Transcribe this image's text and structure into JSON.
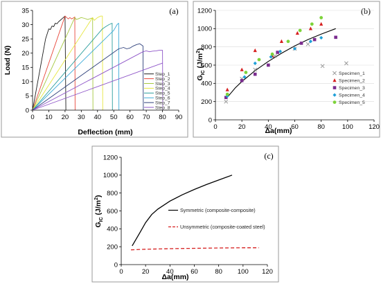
{
  "chart_data": [
    {
      "type": "line",
      "panel_label": "(a)",
      "xlabel": "Deflection (mm)",
      "ylabel": "Load (N)",
      "xlim": [
        0,
        90
      ],
      "ylim": [
        0,
        35
      ],
      "xticks": [
        "0",
        "10",
        "20",
        "30",
        "40",
        "50",
        "60",
        "70",
        "80",
        "90"
      ],
      "yticks": [
        "0",
        "5",
        "10",
        "15",
        "20",
        "25",
        "30",
        "35"
      ],
      "grid": false,
      "legend_position": "bottom-right",
      "series": [
        {
          "name": "Step_1",
          "color": "#1a1a1a",
          "points": [
            [
              0,
              0
            ],
            [
              8,
              25
            ],
            [
              10,
              28.5
            ],
            [
              11,
              28.3
            ],
            [
              12,
              29.5
            ],
            [
              13,
              29.3
            ],
            [
              14,
              30.5
            ],
            [
              15,
              30.3
            ],
            [
              16,
              31
            ],
            [
              17,
              31.5
            ],
            [
              18,
              32
            ],
            [
              19,
              32.5
            ],
            [
              20,
              33
            ],
            [
              20.5,
              0
            ]
          ]
        },
        {
          "name": "Step_2",
          "color": "#e8463a",
          "points": [
            [
              0,
              0
            ],
            [
              20,
              33
            ],
            [
              21,
              32.5
            ],
            [
              22,
              32
            ],
            [
              23,
              32.5
            ],
            [
              24,
              32
            ],
            [
              25,
              32.3
            ],
            [
              26,
              32.7
            ],
            [
              26.2,
              0
            ]
          ]
        },
        {
          "name": "Step_3",
          "color": "#a5c83f",
          "points": [
            [
              0,
              0
            ],
            [
              26,
              32.5
            ],
            [
              27,
              31.8
            ],
            [
              28,
              32
            ],
            [
              30,
              32.5
            ],
            [
              32,
              32.2
            ],
            [
              34,
              31.8
            ],
            [
              36,
              32.2
            ],
            [
              37,
              32.3
            ],
            [
              37.2,
              0
            ]
          ]
        },
        {
          "name": "Step_4",
          "color": "#e6e640",
          "points": [
            [
              0,
              0
            ],
            [
              37,
              32.5
            ],
            [
              38,
              31.5
            ],
            [
              40,
              32.5
            ],
            [
              42,
              33
            ],
            [
              43,
              33
            ],
            [
              43.2,
              0
            ]
          ]
        },
        {
          "name": "Step_5",
          "color": "#2a9d9d",
          "points": [
            [
              0,
              0
            ],
            [
              43,
              28.5
            ],
            [
              45,
              29.3
            ],
            [
              47,
              30
            ],
            [
              49,
              30.5
            ],
            [
              49.2,
              0
            ]
          ]
        },
        {
          "name": "Step_6",
          "color": "#3aaad8",
          "points": [
            [
              0,
              0
            ],
            [
              50,
              28
            ],
            [
              51,
              29
            ],
            [
              52,
              30
            ],
            [
              53,
              30.5
            ],
            [
              53.2,
              0
            ]
          ]
        },
        {
          "name": "Step_7",
          "color": "#2c3e7a",
          "points": [
            [
              0,
              0
            ],
            [
              53,
              21.5
            ],
            [
              56,
              22
            ],
            [
              58,
              21.5
            ],
            [
              60,
              21.8
            ],
            [
              62,
              22.5
            ],
            [
              64,
              23
            ],
            [
              66,
              23.3
            ],
            [
              68,
              22.5
            ],
            [
              68.2,
              0
            ]
          ]
        },
        {
          "name": "Step_8",
          "color": "#8e55c8",
          "points": [
            [
              0,
              0
            ],
            [
              68,
              20.5
            ],
            [
              70,
              20.8
            ],
            [
              72,
              20.5
            ],
            [
              74,
              20.7
            ],
            [
              76,
              20.8
            ],
            [
              78,
              21
            ],
            [
              80,
              21
            ],
            [
              80.2,
              0
            ]
          ]
        },
        {
          "name": "",
          "color": "#8e55c8",
          "points": [
            [
              0,
              0
            ],
            [
              80,
              16.5
            ]
          ]
        }
      ]
    },
    {
      "type": "scatter",
      "panel_label": "(b)",
      "xlabel": "Δa(mm)",
      "ylabel_main": "G",
      "ylabel_sub": "IC",
      "ylabel_unit": " (J/m",
      "ylabel_sup": "2",
      "ylabel_end": ")",
      "xlim": [
        0,
        120
      ],
      "ylim": [
        0,
        1200
      ],
      "xticks": [
        "0",
        "20",
        "40",
        "60",
        "80",
        "100",
        "120"
      ],
      "yticks": [
        "0",
        "200",
        "400",
        "600",
        "800",
        "1000",
        "1200"
      ],
      "grid": true,
      "legend_position": "right",
      "fit_curve": {
        "color": "#000000",
        "points": [
          [
            8,
            230
          ],
          [
            15,
            350
          ],
          [
            20,
            420
          ],
          [
            30,
            540
          ],
          [
            40,
            640
          ],
          [
            50,
            730
          ],
          [
            60,
            810
          ],
          [
            70,
            880
          ],
          [
            80,
            940
          ],
          [
            91,
            1000
          ]
        ]
      },
      "series": [
        {
          "name": "Specimen_1",
          "marker": "x",
          "color": "#9a9a9a",
          "points": [
            [
              8,
              200
            ],
            [
              20,
              450
            ],
            [
              30,
              550
            ],
            [
              45,
              700
            ],
            [
              60,
              780
            ],
            [
              70,
              830
            ],
            [
              81,
              590
            ],
            [
              99,
              620
            ]
          ]
        },
        {
          "name": "Specimen_2",
          "marker": "triangle",
          "color": "#d62020",
          "points": [
            [
              9,
              330
            ],
            [
              20,
              550
            ],
            [
              30,
              760
            ],
            [
              43,
              700
            ],
            [
              50,
              860
            ],
            [
              62,
              950
            ],
            [
              72,
              1000
            ],
            [
              80,
              1050
            ]
          ]
        },
        {
          "name": "Specimen_3",
          "marker": "square",
          "color": "#7b2c8f",
          "points": [
            [
              8,
              245
            ],
            [
              20,
              430
            ],
            [
              30,
              500
            ],
            [
              40,
              600
            ],
            [
              47,
              740
            ],
            [
              65,
              840
            ],
            [
              75,
              880
            ],
            [
              91,
              905
            ]
          ]
        },
        {
          "name": "Specimen_4",
          "marker": "diamond",
          "color": "#1f9fd8",
          "points": [
            [
              9,
              260
            ],
            [
              22,
              470
            ],
            [
              30,
              620
            ],
            [
              42,
              690
            ],
            [
              49,
              750
            ],
            [
              60,
              780
            ],
            [
              72,
              860
            ],
            [
              80,
              900
            ]
          ]
        },
        {
          "name": "Specimen_5",
          "marker": "circle",
          "color": "#7dd33a",
          "points": [
            [
              9,
              280
            ],
            [
              23,
              520
            ],
            [
              33,
              660
            ],
            [
              43,
              720
            ],
            [
              55,
              860
            ],
            [
              64,
              980
            ],
            [
              73,
              1050
            ],
            [
              80,
              1120
            ]
          ]
        }
      ]
    },
    {
      "type": "line",
      "panel_label": "(c)",
      "xlabel": "Δa(mm)",
      "ylabel_main": "G",
      "ylabel_sub": "IC",
      "ylabel_unit": " (J/m",
      "ylabel_sup": "2",
      "ylabel_end": ")",
      "xlim": [
        0,
        120
      ],
      "ylim": [
        0,
        1200
      ],
      "xticks": [
        "0",
        "20",
        "40",
        "60",
        "80",
        "100",
        "120"
      ],
      "yticks": [
        "0",
        "200",
        "400",
        "600",
        "800",
        "1000",
        "1200"
      ],
      "grid": false,
      "legend_position": "center-right",
      "series": [
        {
          "name": "Symmetric (composite-composite)",
          "style": "solid",
          "color": "#000000",
          "points": [
            [
              9,
              210
            ],
            [
              15,
              350
            ],
            [
              20,
              470
            ],
            [
              25,
              560
            ],
            [
              30,
              620
            ],
            [
              40,
              710
            ],
            [
              50,
              780
            ],
            [
              60,
              840
            ],
            [
              70,
              895
            ],
            [
              80,
              945
            ],
            [
              91,
              1000
            ]
          ]
        },
        {
          "name": "Unsymmetric (composite-coated steel)",
          "style": "dashed",
          "color": "#d62020",
          "points": [
            [
              8,
              165
            ],
            [
              20,
              172
            ],
            [
              40,
              178
            ],
            [
              60,
              182
            ],
            [
              80,
              186
            ],
            [
              100,
              188
            ],
            [
              113,
              188
            ]
          ]
        }
      ]
    }
  ]
}
